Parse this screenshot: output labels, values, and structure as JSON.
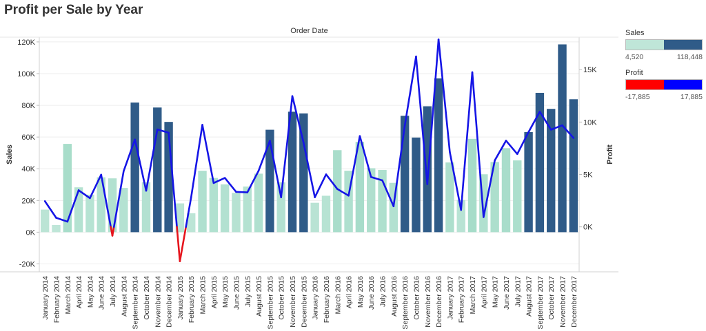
{
  "title": "Profit per Sale by Year",
  "chart_data": {
    "type": "bar+line",
    "header": "Order Date",
    "y_left_label": "Sales",
    "y_right_label": "Profit",
    "y_left_lim": [
      -25000,
      123000
    ],
    "y_right_lim": [
      -4290,
      18100
    ],
    "y_left_ticks": [
      {
        "v": 120000,
        "t": "120K"
      },
      {
        "v": 100000,
        "t": "100K"
      },
      {
        "v": 80000,
        "t": "80K"
      },
      {
        "v": 60000,
        "t": "60K"
      },
      {
        "v": 40000,
        "t": "40K"
      },
      {
        "v": 20000,
        "t": "20K"
      },
      {
        "v": 0,
        "t": "0K"
      },
      {
        "v": -20000,
        "t": "-20K"
      }
    ],
    "y_right_ticks": [
      {
        "v": 15000,
        "t": "15K"
      },
      {
        "v": 10000,
        "t": "10K"
      },
      {
        "v": 5000,
        "t": "5K"
      },
      {
        "v": 0,
        "t": "0K"
      }
    ],
    "categories": [
      "January 2014",
      "February 2014",
      "March 2014",
      "April 2014",
      "May 2014",
      "June 2014",
      "July 2014",
      "August 2014",
      "September 2014",
      "October 2014",
      "November 2014",
      "December 2014",
      "January 2015",
      "February 2015",
      "March 2015",
      "April 2015",
      "May 2015",
      "June 2015",
      "July 2015",
      "August 2015",
      "September 2015",
      "October 2015",
      "November 2015",
      "December 2015",
      "January 2016",
      "February 2016",
      "March 2016",
      "April 2016",
      "May 2016",
      "June 2016",
      "July 2016",
      "August 2016",
      "September 2016",
      "October 2016",
      "November 2016",
      "December 2016",
      "January 2017",
      "February 2017",
      "March 2017",
      "April 2017",
      "May 2017",
      "June 2017",
      "July 2017",
      "August 2017",
      "September 2017",
      "October 2017",
      "November 2017",
      "December 2017"
    ],
    "sales": [
      14237,
      4520,
      55691,
      28295,
      23648,
      34595,
      33946,
      27909,
      81777,
      31453,
      78628,
      69546,
      18174,
      11951,
      38726,
      34195,
      30132,
      24797,
      28765,
      36898,
      64596,
      31405,
      75973,
      74919,
      18542,
      22979,
      51716,
      38750,
      56988,
      40345,
      39262,
      31115,
      73410,
      59688,
      79412,
      96999,
      43971,
      20301,
      58872,
      36522,
      44261,
      52982,
      45264,
      63121,
      87867,
      77777,
      118448,
      83829
    ],
    "profit": [
      2450,
      862,
      499,
      3489,
      2739,
      4977,
      -841,
      5318,
      8328,
      3448,
      9292,
      8983,
      -3281,
      2814,
      9732,
      4187,
      4668,
      3336,
      3288,
      5356,
      8210,
      2817,
      12474,
      8016,
      2824,
      5005,
      3611,
      2978,
      8663,
      4751,
      4433,
      1965,
      9683,
      16256,
      4073,
      17885,
      7140,
      1613,
      14752,
      934,
      6342,
      8223,
      6952,
      9040,
      10991,
      9275,
      9690,
      8483
    ],
    "sales_color_range": [
      "#bfe6d8",
      "#2f5b88"
    ],
    "profit_pos_color": "#1515e6",
    "profit_neg_color": "#e6141c",
    "legend": {
      "sales": {
        "title": "Sales",
        "min_label": "4,520",
        "max_label": "118,448",
        "colors": [
          "#bfe6d8",
          "#2f5b88"
        ]
      },
      "profit": {
        "title": "Profit",
        "min_label": "-17,885",
        "max_label": "17,885",
        "colors": [
          "#ff0000",
          "#0000ff"
        ]
      }
    }
  }
}
